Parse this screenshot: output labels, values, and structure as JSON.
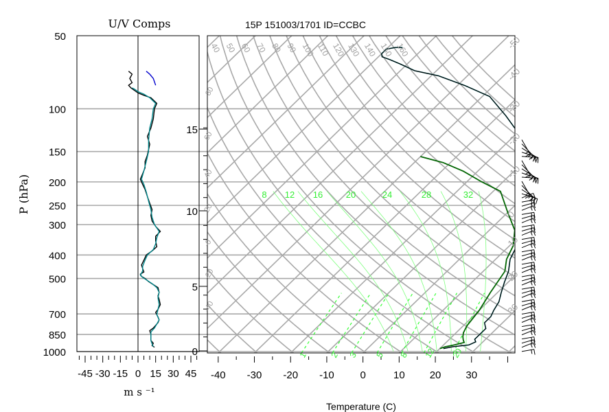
{
  "chart_data": [
    {
      "type": "line",
      "title": "U/V Comps",
      "ylabel": "P (hPa)",
      "xlabel": "m s ⁻¹",
      "x_ticks": [
        -45,
        -30,
        -15,
        0,
        15,
        30,
        45
      ],
      "xlim": [
        -52,
        52
      ],
      "y_ticks": [
        50,
        100,
        150,
        200,
        250,
        300,
        400,
        500,
        700,
        850,
        1000
      ],
      "ylim": [
        50,
        1000
      ],
      "y_scale": "log",
      "zero_line": true,
      "series": [
        {
          "color": "#000000",
          "points": [
            [
              14,
              960
            ],
            [
              12,
              945
            ],
            [
              13,
              925
            ],
            [
              11,
              900
            ],
            [
              11,
              850
            ],
            [
              10,
              820
            ],
            [
              13,
              800
            ],
            [
              15,
              780
            ],
            [
              17,
              760
            ],
            [
              18,
              740
            ],
            [
              17,
              720
            ],
            [
              15,
              690
            ],
            [
              17,
              670
            ],
            [
              19,
              640
            ],
            [
              18,
              610
            ],
            [
              17,
              590
            ],
            [
              18,
              570
            ],
            [
              17,
              545
            ],
            [
              13,
              530
            ],
            [
              9,
              515
            ],
            [
              6,
              500
            ],
            [
              3,
              490
            ],
            [
              2,
              480
            ],
            [
              5,
              470
            ],
            [
              4,
              455
            ],
            [
              3,
              440
            ],
            [
              5,
              420
            ],
            [
              7,
              400
            ],
            [
              12,
              385
            ],
            [
              16,
              370
            ],
            [
              15,
              350
            ],
            [
              15,
              335
            ],
            [
              19,
              320
            ],
            [
              15,
              305
            ],
            [
              12,
              290
            ],
            [
              11,
              275
            ],
            [
              12,
              260
            ],
            [
              10,
              245
            ],
            [
              8,
              230
            ],
            [
              6,
              215
            ],
            [
              4,
              205
            ],
            [
              2,
              195
            ],
            [
              4,
              185
            ],
            [
              6,
              175
            ],
            [
              6,
              165
            ],
            [
              8,
              155
            ],
            [
              10,
              140
            ],
            [
              8,
              130
            ],
            [
              11,
              120
            ],
            [
              13,
              110
            ],
            [
              14,
              100
            ],
            [
              16,
              95
            ],
            [
              11,
              90
            ],
            [
              5,
              88
            ],
            [
              0,
              86
            ],
            [
              -3,
              84
            ],
            [
              -6,
              82
            ],
            [
              -8,
              80
            ],
            [
              -5,
              78
            ],
            [
              -7,
              75
            ],
            [
              -5,
              72
            ],
            [
              -8,
              70
            ]
          ]
        },
        {
          "color": "#00868b",
          "points": [
            [
              13,
              955
            ],
            [
              12,
              930
            ],
            [
              11,
              900
            ],
            [
              11,
              855
            ],
            [
              11,
              830
            ],
            [
              14,
              800
            ],
            [
              16,
              770
            ],
            [
              18,
              740
            ],
            [
              16,
              705
            ],
            [
              17,
              670
            ],
            [
              18,
              640
            ],
            [
              17,
              600
            ],
            [
              18,
              570
            ],
            [
              16,
              545
            ],
            [
              12,
              525
            ],
            [
              8,
              510
            ],
            [
              4,
              495
            ],
            [
              2,
              485
            ],
            [
              4,
              465
            ],
            [
              4,
              445
            ],
            [
              6,
              420
            ],
            [
              8,
              400
            ],
            [
              13,
              380
            ],
            [
              15,
              360
            ],
            [
              16,
              340
            ],
            [
              18,
              320
            ],
            [
              14,
              300
            ],
            [
              12,
              280
            ],
            [
              11,
              260
            ],
            [
              9,
              240
            ],
            [
              7,
              220
            ],
            [
              5,
              205
            ],
            [
              3,
              195
            ],
            [
              5,
              180
            ],
            [
              7,
              165
            ],
            [
              9,
              150
            ],
            [
              9,
              135
            ],
            [
              10,
              120
            ],
            [
              12,
              110
            ],
            [
              13,
              100
            ],
            [
              15,
              95
            ],
            [
              10,
              90
            ],
            [
              5,
              87
            ],
            [
              0,
              85
            ],
            [
              -3,
              83
            ],
            [
              -5,
              82
            ]
          ]
        },
        {
          "color": "#0000cd",
          "points": [
            [
              15,
              80
            ],
            [
              13,
              75
            ],
            [
              10,
              72
            ],
            [
              7,
              70
            ]
          ]
        }
      ]
    },
    {
      "type": "line",
      "title": "15P 151003/1701 ID=CCBC",
      "xlabel": "Temperature (C)",
      "x_ticks": [
        -40,
        -30,
        -20,
        -10,
        0,
        10,
        20,
        30
      ],
      "xlim": [
        -43,
        42
      ],
      "y_ticks": [
        0,
        5,
        10,
        15
      ],
      "y_scale": "log-pressure",
      "isotherm_labels": [
        -50,
        -40,
        -30,
        -20,
        -10,
        0,
        10,
        20,
        30
      ],
      "dry_adiabat_labels": [
        40,
        50,
        60,
        70,
        80,
        90,
        100,
        110,
        120,
        130,
        140,
        150,
        160
      ],
      "mixing_ratio_labels_top": [
        8,
        12,
        16,
        20,
        24,
        28,
        32
      ],
      "mixing_ratio_labels_bottom": [
        1,
        2,
        3,
        5,
        8,
        12,
        20
      ],
      "series": [
        {
          "name": "Temperature",
          "color": "#000000",
          "points": [
            [
              21,
              975
            ],
            [
              23,
              960
            ],
            [
              27,
              945
            ],
            [
              28,
              920
            ],
            [
              27,
              900
            ],
            [
              27,
              880
            ],
            [
              27,
              850
            ],
            [
              27,
              820
            ],
            [
              26,
              800
            ],
            [
              25,
              780
            ],
            [
              25,
              740
            ],
            [
              24,
              700
            ],
            [
              23,
              650
            ],
            [
              21,
              600
            ],
            [
              19,
              550
            ],
            [
              17,
              500
            ],
            [
              14,
              450
            ],
            [
              12,
              400
            ],
            [
              9,
              350
            ],
            [
              6,
              300
            ],
            [
              3,
              250
            ],
            [
              -2,
              220
            ],
            [
              -5,
              200
            ],
            [
              -12,
              175
            ],
            [
              -20,
              150
            ],
            [
              -28,
              130
            ],
            [
              -38,
              110
            ],
            [
              -48,
              100
            ],
            [
              -58,
              92
            ],
            [
              -66,
              88
            ],
            [
              -72,
              83
            ],
            [
              -76,
              80
            ],
            [
              -79,
              78
            ],
            [
              -80,
              76
            ],
            [
              -80,
              73
            ],
            [
              -78,
              72
            ],
            [
              -76,
              72
            ]
          ]
        },
        {
          "name": "Dew point",
          "color": "#006400",
          "points": [
            [
              20,
              975
            ],
            [
              21,
              960
            ],
            [
              23,
              945
            ],
            [
              25,
              925
            ],
            [
              24,
              905
            ],
            [
              23,
              880
            ],
            [
              22,
              850
            ],
            [
              21,
              800
            ],
            [
              20,
              700
            ],
            [
              18,
              600
            ],
            [
              16,
              500
            ],
            [
              13,
              450
            ],
            [
              11,
              400
            ],
            [
              7,
              350
            ],
            [
              0,
              300
            ],
            [
              -8,
              250
            ],
            [
              -16,
              230
            ],
            [
              -24,
              210
            ],
            [
              -32,
              195
            ],
            [
              -40,
              185
            ]
          ]
        }
      ]
    },
    {
      "type": "line",
      "title": "",
      "series": [
        {
          "name": "Wind barbs",
          "color": "#000000",
          "count": 52
        }
      ]
    }
  ]
}
